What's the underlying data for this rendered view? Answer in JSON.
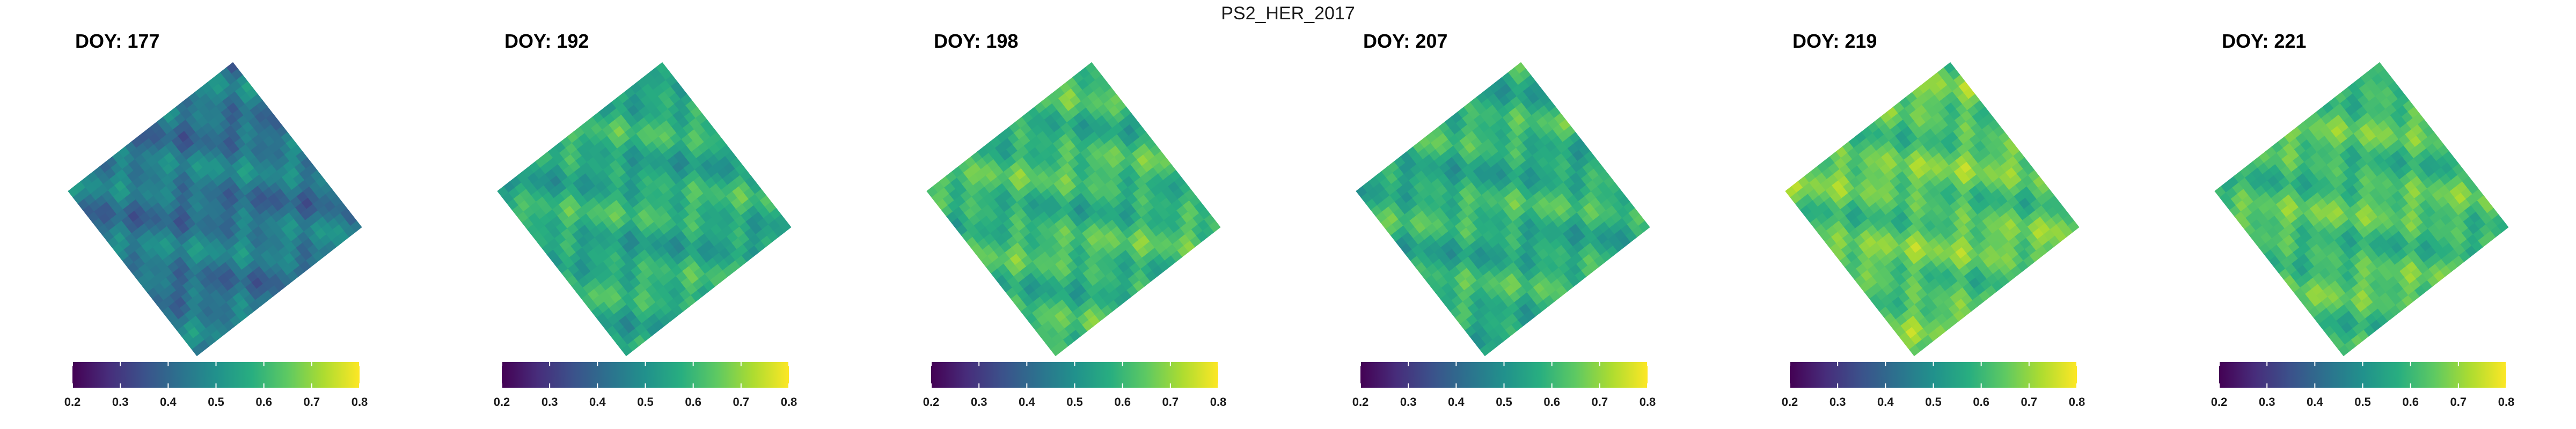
{
  "figure_title": "PS2_HER_2017",
  "colormap": {
    "name": "viridis",
    "stops": [
      "#440154",
      "#472d7b",
      "#3b528b",
      "#2c728e",
      "#21918c",
      "#28ae80",
      "#5ec962",
      "#addc30",
      "#fde725"
    ]
  },
  "chart_data": [
    {
      "type": "heatmap",
      "title": "DOY: 177",
      "colorbar": {
        "min": 0.2,
        "max": 0.8,
        "ticks": [
          "0.2",
          "0.3",
          "0.4",
          "0.5",
          "0.6",
          "0.7",
          "0.8"
        ]
      },
      "approx_mean_value": 0.44
    },
    {
      "type": "heatmap",
      "title": "DOY: 192",
      "colorbar": {
        "min": 0.2,
        "max": 0.8,
        "ticks": [
          "0.2",
          "0.3",
          "0.4",
          "0.5",
          "0.6",
          "0.7",
          "0.8"
        ]
      },
      "approx_mean_value": 0.57
    },
    {
      "type": "heatmap",
      "title": "DOY: 198",
      "colorbar": {
        "min": 0.2,
        "max": 0.8,
        "ticks": [
          "0.2",
          "0.3",
          "0.4",
          "0.5",
          "0.6",
          "0.7",
          "0.8"
        ]
      },
      "approx_mean_value": 0.6
    },
    {
      "type": "heatmap",
      "title": "DOY: 207",
      "colorbar": {
        "min": 0.2,
        "max": 0.8,
        "ticks": [
          "0.2",
          "0.3",
          "0.4",
          "0.5",
          "0.6",
          "0.7",
          "0.8"
        ]
      },
      "approx_mean_value": 0.58
    },
    {
      "type": "heatmap",
      "title": "DOY: 219",
      "colorbar": {
        "min": 0.2,
        "max": 0.8,
        "ticks": [
          "0.2",
          "0.3",
          "0.4",
          "0.5",
          "0.6",
          "0.7",
          "0.8"
        ]
      },
      "approx_mean_value": 0.64
    },
    {
      "type": "heatmap",
      "title": "DOY: 221",
      "colorbar": {
        "min": 0.2,
        "max": 0.8,
        "ticks": [
          "0.2",
          "0.3",
          "0.4",
          "0.5",
          "0.6",
          "0.7",
          "0.8"
        ]
      },
      "approx_mean_value": 0.62
    }
  ]
}
